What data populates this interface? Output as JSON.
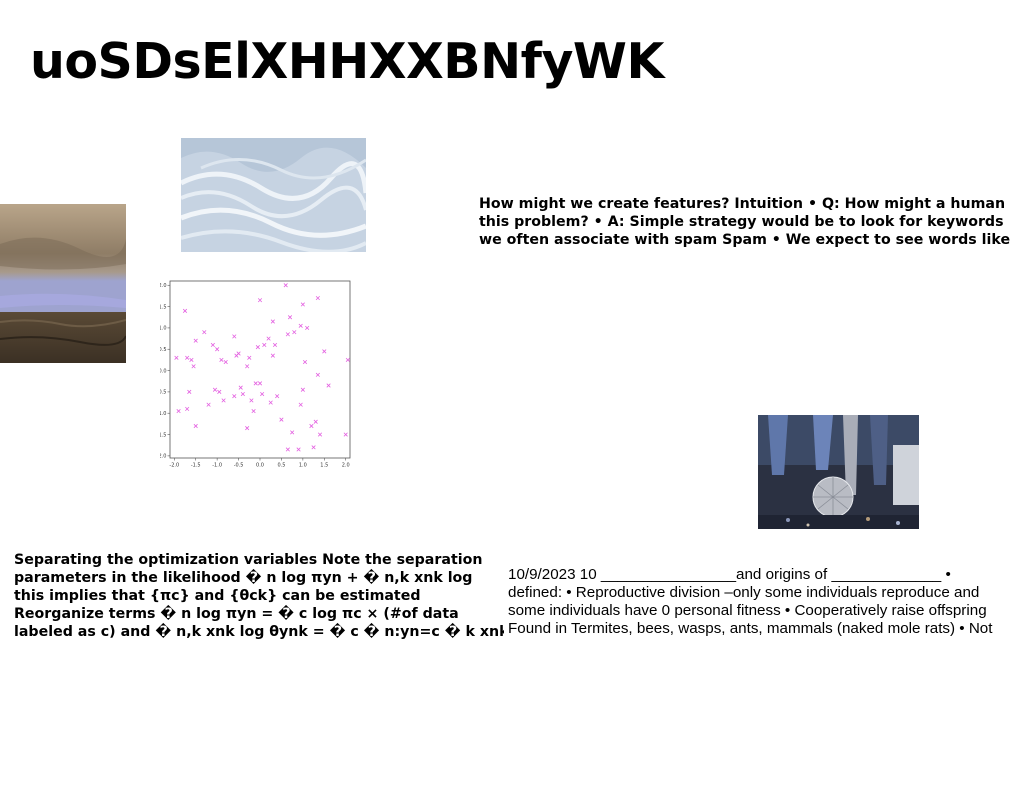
{
  "title": "uoSDsElXHHXXBNfyWK",
  "text_blocks": {
    "features": [
      "How might we create features? Intuition • Q: How might a human",
      "this problem? • A: Simple strategy would be to look for keywords",
      "we often associate with spam Spam • We expect to see words like"
    ],
    "separating": [
      "Separating the optimization variables Note the separation",
      "parameters in the likelihood � n log πyn + � n,k xnk log",
      "this implies that {πc} and {θck} can be estimated",
      "Reorganize terms � n log πyn = � c log πc × (#of data",
      "labeled as c) and � n,k xnk log θynk = � c � n:yn=c � k xnk"
    ],
    "notes": [
      "10/9/2023 10 ________________and origins of _____________ •",
      "defined: • Reproductive division –only some individuals reproduce and",
      "some individuals have 0 personal fitness • Cooperatively raise offspring",
      "Found in Termites, bees, wasps, ants, mammals (naked mole rats) • Not"
    ]
  },
  "chart_data": {
    "type": "scatter",
    "marker": "x",
    "color": "#e35fe0",
    "xlim": [
      -2.1,
      2.1
    ],
    "ylim": [
      -2.05,
      2.1
    ],
    "xticks": [
      "-2.0",
      "-1.5",
      "-1.0",
      "-0.5",
      "0.0",
      "0.5",
      "1.0",
      "1.5",
      "2.0"
    ],
    "yticks": [
      "2.0",
      "1.5",
      "1.0",
      "0.5",
      "0.0",
      "-0.5",
      "-1.0",
      "-1.5",
      "-2.0"
    ],
    "x": [
      -1.95,
      -1.9,
      -1.75,
      -1.7,
      -1.65,
      -1.6,
      -1.55,
      -1.5,
      -1.5,
      -1.3,
      -1.2,
      -1.1,
      -1.0,
      -0.95,
      -0.9,
      -0.85,
      -0.8,
      -0.6,
      -0.55,
      -0.5,
      -0.45,
      -0.4,
      -0.3,
      -0.25,
      -0.2,
      -0.15,
      -0.1,
      -0.05,
      0.0,
      0.05,
      0.1,
      0.2,
      0.25,
      0.3,
      0.35,
      0.4,
      0.5,
      0.6,
      0.65,
      0.7,
      0.75,
      0.8,
      0.9,
      0.95,
      1.0,
      1.05,
      1.1,
      1.2,
      1.25,
      1.3,
      1.35,
      1.4,
      1.5,
      1.6,
      2.05,
      2.0,
      0.95,
      -0.3,
      0.0,
      0.65,
      1.0,
      1.35,
      -1.7,
      -0.6,
      0.3,
      -1.05
    ],
    "y": [
      0.3,
      -0.95,
      1.4,
      0.3,
      -0.5,
      0.25,
      0.1,
      0.7,
      -1.3,
      0.9,
      -0.8,
      0.6,
      0.5,
      -0.5,
      0.25,
      -0.7,
      0.2,
      0.8,
      0.35,
      0.4,
      -0.4,
      -0.55,
      0.1,
      0.3,
      -0.7,
      -0.95,
      -0.3,
      0.55,
      -0.3,
      -0.55,
      0.6,
      0.75,
      -0.75,
      1.15,
      0.6,
      -0.6,
      -1.15,
      2.0,
      0.85,
      1.25,
      -1.45,
      0.9,
      -1.85,
      1.05,
      1.55,
      0.2,
      1.0,
      -1.3,
      -1.8,
      -1.2,
      1.7,
      -1.5,
      0.45,
      -0.35,
      0.25,
      -1.5,
      -0.8,
      -1.35,
      1.65,
      -1.85,
      -0.45,
      -0.1,
      -0.9,
      -0.6,
      0.35,
      -0.45
    ]
  },
  "images": {
    "desert": {
      "colors": [
        "#b8a48a",
        "#8c7a64",
        "#9aa0c8",
        "#4a3e2e"
      ]
    },
    "waves": {
      "colors": [
        "#c9d6e4",
        "#e8eef4",
        "#a8b8cc"
      ]
    },
    "party": {
      "colors": [
        "#2a3244",
        "#6f86b8",
        "#c8ccd6"
      ]
    }
  }
}
